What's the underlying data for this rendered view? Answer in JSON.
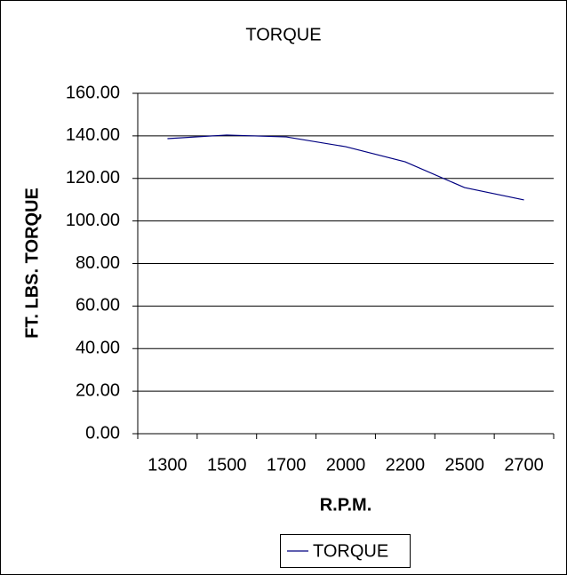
{
  "chart_data": {
    "type": "line",
    "title": "TORQUE",
    "x_label": "R.P.M.",
    "y_label": "FT. LBS. TORQUE",
    "categories": [
      "1300",
      "1500",
      "1700",
      "2000",
      "2200",
      "2500",
      "2700"
    ],
    "series": [
      {
        "name": "TORQUE",
        "color": "#000080",
        "values": [
          138.7,
          140.4,
          139.5,
          134.9,
          127.8,
          115.7,
          109.9
        ]
      }
    ],
    "ylim": [
      0,
      160
    ],
    "yticks": [
      {
        "value": 0,
        "label": "0.00"
      },
      {
        "value": 20,
        "label": "20.00"
      },
      {
        "value": 40,
        "label": "40.00"
      },
      {
        "value": 60,
        "label": "60.00"
      },
      {
        "value": 80,
        "label": "80.00"
      },
      {
        "value": 100,
        "label": "100.00"
      },
      {
        "value": 120,
        "label": "120.00"
      },
      {
        "value": 140,
        "label": "140.00"
      },
      {
        "value": 160,
        "label": "160.00"
      }
    ],
    "grid": true,
    "legend": "bottom"
  }
}
